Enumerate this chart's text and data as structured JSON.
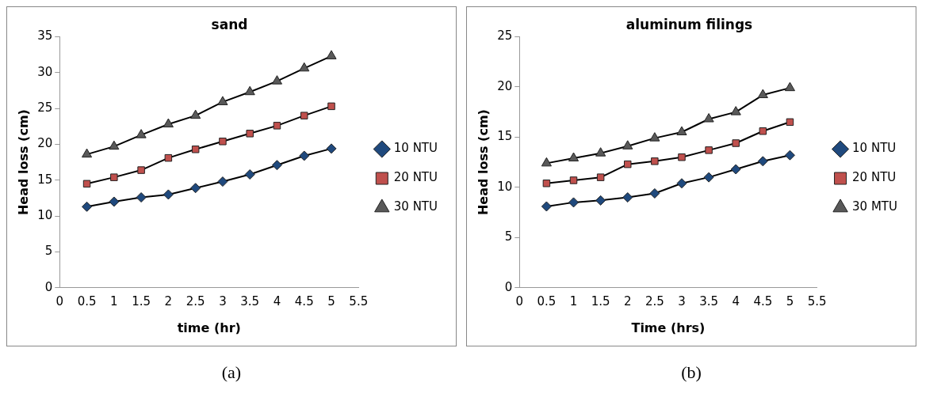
{
  "chart_data": [
    {
      "type": "line",
      "title": "sand",
      "xlabel": "time (hr)",
      "ylabel": "Head loss (cm)",
      "x": [
        0.5,
        1,
        1.5,
        2,
        2.5,
        3,
        3.5,
        4,
        4.5,
        5
      ],
      "xlim": [
        0,
        5.5
      ],
      "xticks": [
        0,
        0.5,
        1,
        1.5,
        2,
        2.5,
        3,
        3.5,
        4,
        4.5,
        5,
        5.5
      ],
      "ylim": [
        0,
        35
      ],
      "yticks": [
        0,
        5,
        10,
        15,
        20,
        25,
        30,
        35
      ],
      "grid": false,
      "legend": "right",
      "annotations": [
        "(a)"
      ],
      "series": [
        {
          "name": "10 NTU",
          "color": "#1f497d",
          "marker": "diamond",
          "values": [
            11.3,
            12,
            12.6,
            13,
            13.9,
            14.8,
            15.8,
            17.1,
            18.4,
            19.4
          ]
        },
        {
          "name": "20 NTU",
          "color": "#c0504d",
          "marker": "square",
          "values": [
            14.5,
            15.4,
            16.4,
            18.1,
            19.3,
            20.4,
            21.5,
            22.6,
            24,
            25.3
          ]
        },
        {
          "name": "30 NTU",
          "color": "#595959",
          "marker": "triangle",
          "values": [
            18.6,
            19.7,
            21.3,
            22.8,
            24,
            25.9,
            27.3,
            28.8,
            30.6,
            32.3
          ]
        }
      ]
    },
    {
      "type": "line",
      "title": "aluminum filings",
      "xlabel": "Time (hrs)",
      "ylabel": "Head loss (cm)",
      "x": [
        0.5,
        1,
        1.5,
        2,
        2.5,
        3,
        3.5,
        4,
        4.5,
        5
      ],
      "xlim": [
        0,
        5.5
      ],
      "xticks": [
        0,
        0.5,
        1,
        1.5,
        2,
        2.5,
        3,
        3.5,
        4,
        4.5,
        5,
        5.5
      ],
      "ylim": [
        0,
        25
      ],
      "yticks": [
        0,
        5,
        10,
        15,
        20,
        25
      ],
      "grid": false,
      "legend": "right",
      "annotations": [
        "(b)"
      ],
      "series": [
        {
          "name": "10 NTU",
          "color": "#1f497d",
          "marker": "diamond",
          "values": [
            8.1,
            8.5,
            8.7,
            9,
            9.4,
            10.4,
            11,
            11.8,
            12.6,
            13.2
          ]
        },
        {
          "name": "20 NTU",
          "color": "#c0504d",
          "marker": "square",
          "values": [
            10.4,
            10.7,
            11,
            12.3,
            12.6,
            13,
            13.7,
            14.4,
            15.6,
            16.5
          ]
        },
        {
          "name": "30 MTU",
          "color": "#595959",
          "marker": "triangle",
          "values": [
            12.4,
            12.9,
            13.4,
            14.1,
            14.9,
            15.5,
            16.8,
            17.5,
            19.2,
            19.9
          ]
        }
      ]
    }
  ]
}
